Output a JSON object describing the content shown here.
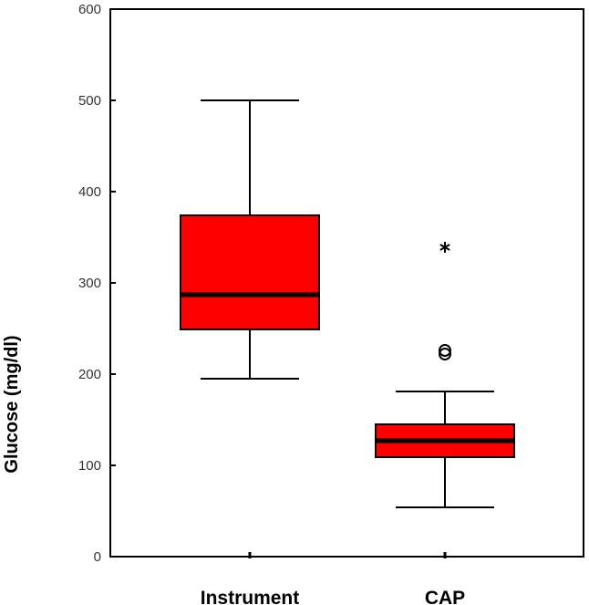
{
  "chart_data": {
    "type": "boxplot",
    "title": "",
    "xlabel": "",
    "ylabel": "Glucose (mg/dl)",
    "ylim": [
      0,
      600
    ],
    "yticks": [
      0,
      100,
      200,
      300,
      400,
      500,
      600
    ],
    "grid": false,
    "box_color": "#ff0000",
    "categories": [
      "Instrument",
      "CAP"
    ],
    "series": [
      {
        "name": "Instrument",
        "whisker_low": 195,
        "q1": 249,
        "median": 287,
        "q3": 374,
        "whisker_high": 500,
        "outliers": [],
        "extremes": []
      },
      {
        "name": "CAP",
        "whisker_low": 54,
        "q1": 109,
        "median": 127,
        "q3": 145,
        "whisker_high": 181,
        "outliers": [
          222,
          226
        ],
        "extremes": [
          339
        ]
      }
    ]
  }
}
